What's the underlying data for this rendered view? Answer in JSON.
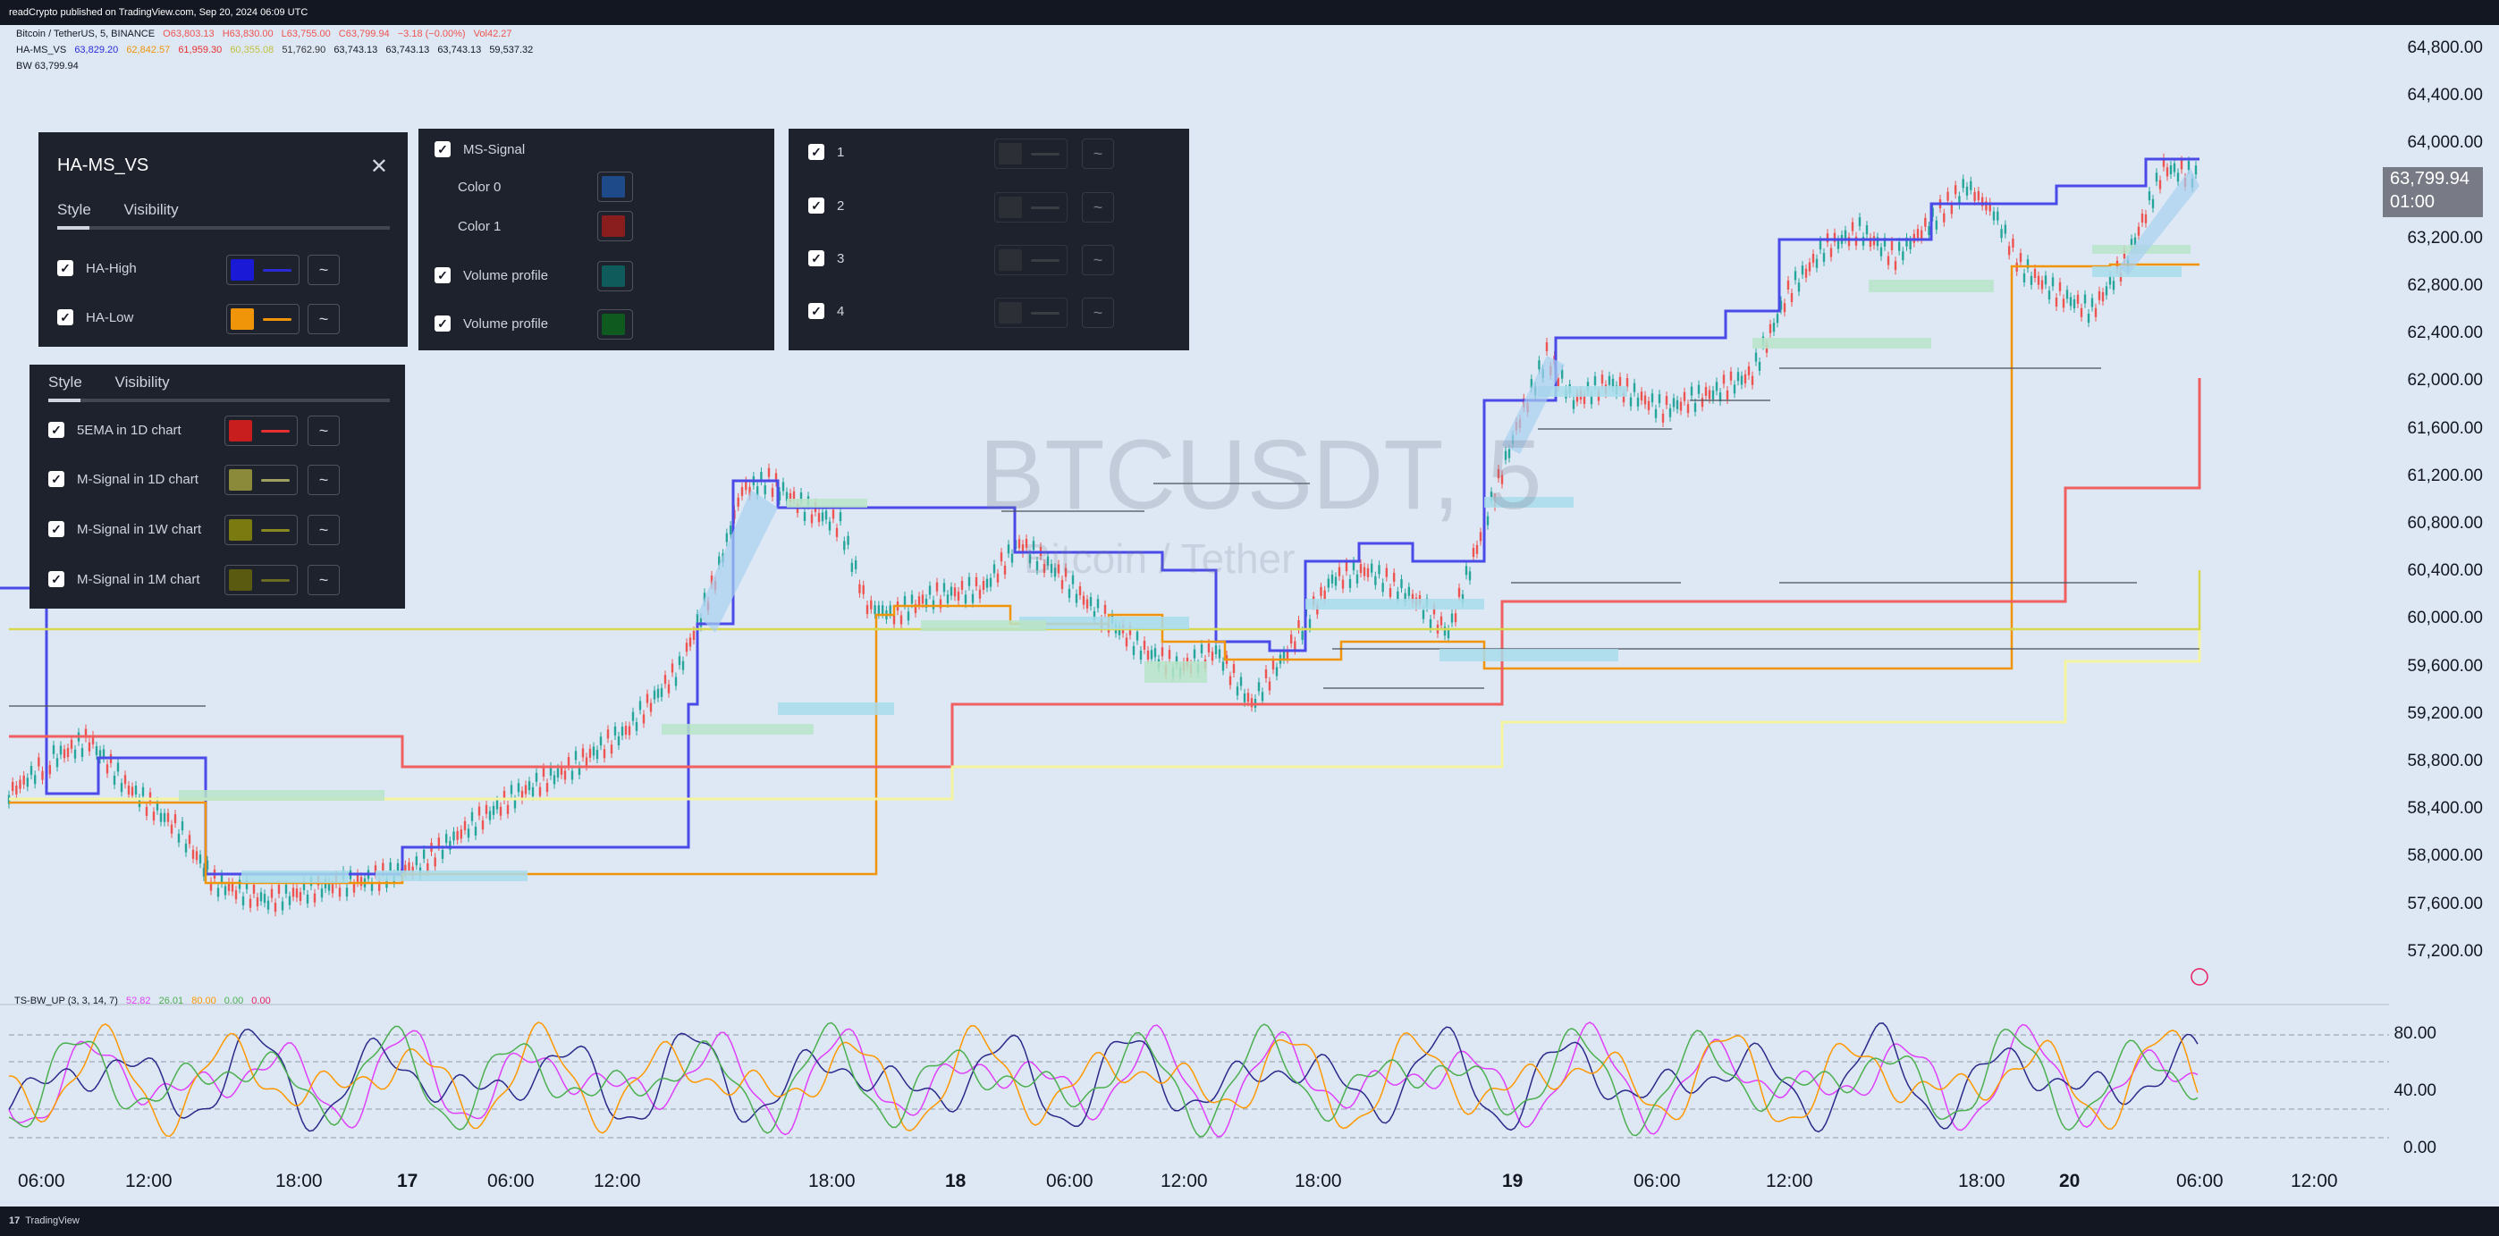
{
  "header": {
    "published": "readCrypto published on TradingView.com, Sep 20, 2024 06:09 UTC"
  },
  "footer": {
    "brand": "TradingView"
  },
  "legend": {
    "symbol": "Bitcoin / TetherUS, 5, BINANCE",
    "open": "O63,803.13",
    "high": "H63,830.00",
    "low": "L63,755.00",
    "close": "C63,799.94",
    "change": "−3.18 (−0.00%)",
    "vol": "Vol42.27",
    "hams_name": "HA-MS_VS",
    "hams_values": [
      "63,829.20",
      "62,842.57",
      "61,959.30",
      "60,355.08",
      "51,762.90",
      "63,743.13",
      "63,743.13",
      "63,743.13",
      "59,537.32"
    ],
    "bw": "BW 63,799.94"
  },
  "watermark": {
    "ticker": "BTCUSDT, 5",
    "name": "Bitcoin / Tether"
  },
  "panel1": {
    "title": "HA-MS_VS",
    "tabs": [
      "Style",
      "Visibility"
    ],
    "items": [
      {
        "label": "HA-High",
        "color": "#1a1ad6",
        "line": "#2b2bd6"
      },
      {
        "label": "HA-Low",
        "color": "#f0940a",
        "line": "#f0940a"
      }
    ]
  },
  "panel2": {
    "items": [
      {
        "label": "MS-Signal",
        "checkbox": true
      },
      {
        "label": "Color 0",
        "checkbox": false,
        "color": "#1e4a8a"
      },
      {
        "label": "Color 1",
        "checkbox": false,
        "color": "#8a1e1e"
      },
      {
        "label": "Volume profile",
        "checkbox": true,
        "color": "#0f5a5a"
      },
      {
        "label": "Volume profile",
        "checkbox": true,
        "color": "#0f5a1e"
      }
    ]
  },
  "panel3": {
    "items": [
      "1",
      "2",
      "3",
      "4"
    ]
  },
  "panel4": {
    "tabs": [
      "Style",
      "Visibility"
    ],
    "items": [
      {
        "label": "5EMA in 1D chart",
        "color": "#c81e1e",
        "line": "#e83030"
      },
      {
        "label": "M-Signal in 1D chart",
        "color": "#8a8a3a",
        "line": "#a0a060"
      },
      {
        "label": "M-Signal in 1W chart",
        "color": "#7a7a10",
        "line": "#8a8a20"
      },
      {
        "label": "M-Signal in 1M chart",
        "color": "#5a5a10",
        "line": "#6a6a20"
      }
    ]
  },
  "price_axis": {
    "ticks": [
      "64,800.00",
      "64,400.00",
      "64,000.00",
      "63,600.00",
      "63,200.00",
      "62,800.00",
      "62,400.00",
      "62,000.00",
      "61,600.00",
      "61,200.00",
      "60,800.00",
      "60,400.00",
      "60,000.00",
      "59,600.00",
      "59,200.00",
      "58,800.00",
      "58,400.00",
      "58,000.00",
      "57,600.00",
      "57,200.00"
    ],
    "current_price": "63,799.94",
    "countdown": "01:00"
  },
  "oscillator": {
    "label": "TS-BW_UP (3, 3, 14, 7)",
    "values": [
      "52.82",
      "26.01",
      "80.00",
      "0.00",
      "0.00"
    ],
    "value_colors": [
      "#e040fb",
      "#4caf50",
      "#ff9800",
      "#4caf50",
      "#e91e63"
    ],
    "ticks": [
      "80.00",
      "40.00",
      "0.00"
    ]
  },
  "time_axis": [
    "06:00",
    "12:00",
    "18:00",
    "17",
    "06:00",
    "12:00",
    "18:00",
    "18",
    "06:00",
    "12:00",
    "18:00",
    "19",
    "06:00",
    "12:00",
    "18:00",
    "20",
    "06:00",
    "12:00"
  ],
  "colors": {
    "background": "#dde8f4",
    "up": "#26a69a",
    "down": "#ef5350",
    "ha_high": "#3f3ff0",
    "ha_low": "#f0940a",
    "ema": "#f05a5a",
    "m_signal_1d": "#f0f080",
    "m_signal_1w": "#d8d840"
  }
}
